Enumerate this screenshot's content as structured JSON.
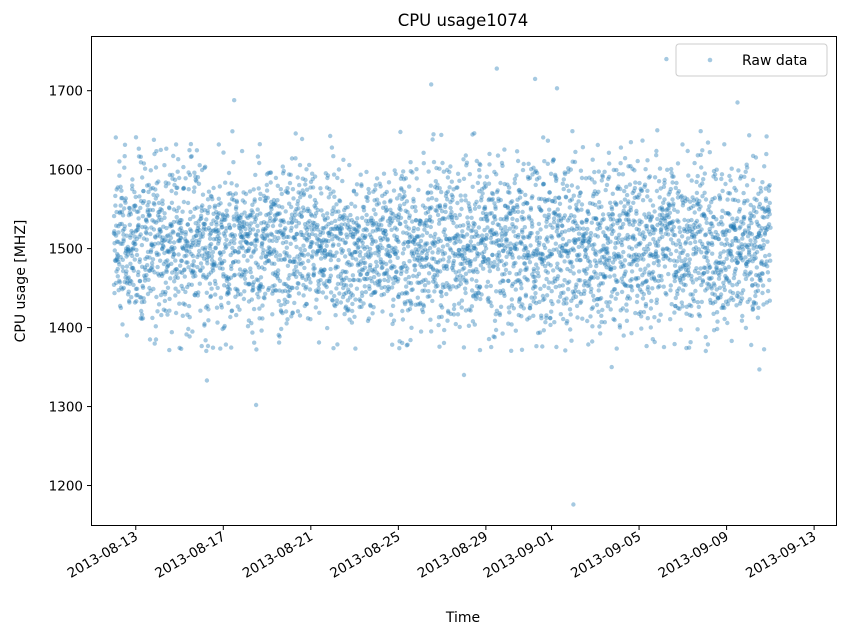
{
  "chart_data": {
    "type": "scatter",
    "title": "CPU usage1074",
    "xlabel": "Time",
    "ylabel": "CPU usage [MHZ]",
    "x_range": [
      "2013-08-11",
      "2013-09-14"
    ],
    "ylim": [
      1150,
      1768
    ],
    "x_ticks": [
      "2013-08-13",
      "2013-08-17",
      "2013-08-21",
      "2013-08-25",
      "2013-08-29",
      "2013-09-01",
      "2013-09-05",
      "2013-09-09",
      "2013-09-13"
    ],
    "y_ticks": [
      1200,
      1300,
      1400,
      1500,
      1600,
      1700
    ],
    "data_range": {
      "x": [
        "2013-08-12",
        "2013-09-11"
      ],
      "y_typical": [
        1370,
        1650
      ],
      "y_center": 1505
    },
    "outliers": [
      {
        "x": "2013-08-18T12:00",
        "y": 1302
      },
      {
        "x": "2013-09-02T00:00",
        "y": 1176
      },
      {
        "x": "2013-08-16T06:00",
        "y": 1333
      },
      {
        "x": "2013-08-28T00:00",
        "y": 1340
      },
      {
        "x": "2013-08-29T12:00",
        "y": 1728
      },
      {
        "x": "2013-08-31T06:00",
        "y": 1715
      },
      {
        "x": "2013-09-01T06:00",
        "y": 1703
      },
      {
        "x": "2013-09-06T06:00",
        "y": 1740
      },
      {
        "x": "2013-09-09T12:00",
        "y": 1685
      },
      {
        "x": "2013-08-17T12:00",
        "y": 1688
      },
      {
        "x": "2013-08-26T12:00",
        "y": 1708
      },
      {
        "x": "2013-09-03T18:00",
        "y": 1350
      },
      {
        "x": "2013-09-10T12:00",
        "y": 1347
      }
    ],
    "series": [
      {
        "name": "Raw data",
        "color": "#1f77b4",
        "alpha": 0.4,
        "marker": "circle"
      }
    ],
    "legend": {
      "position": "top-right",
      "entries": [
        "Raw data"
      ]
    },
    "grid": false
  }
}
